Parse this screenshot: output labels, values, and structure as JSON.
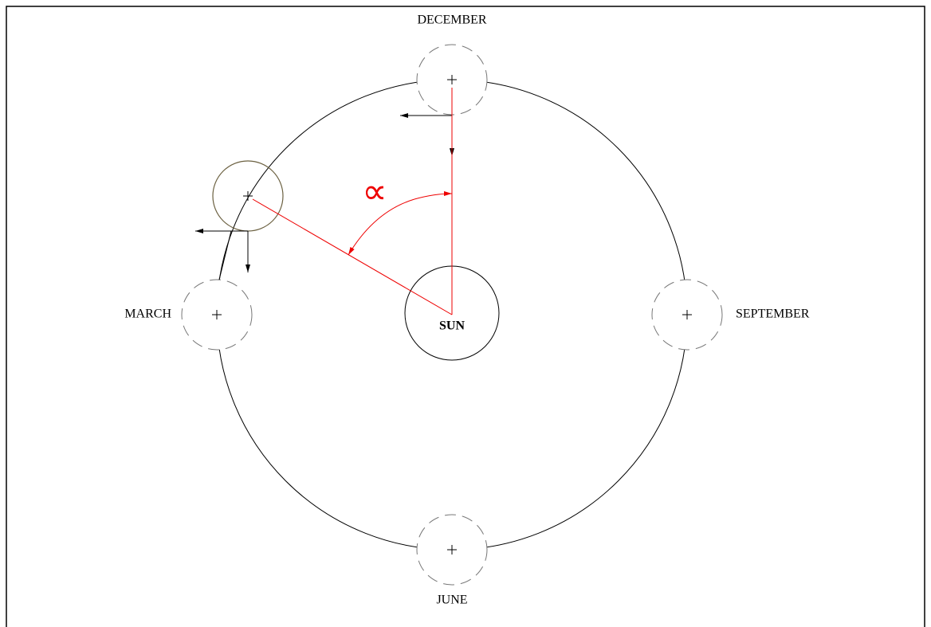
{
  "diagram": {
    "months": {
      "december": "DECEMBER",
      "march": "MARCH",
      "september": "SEPTEMBER",
      "june": "JUNE"
    },
    "sun": "SUN",
    "angle_symbol": "∝"
  }
}
